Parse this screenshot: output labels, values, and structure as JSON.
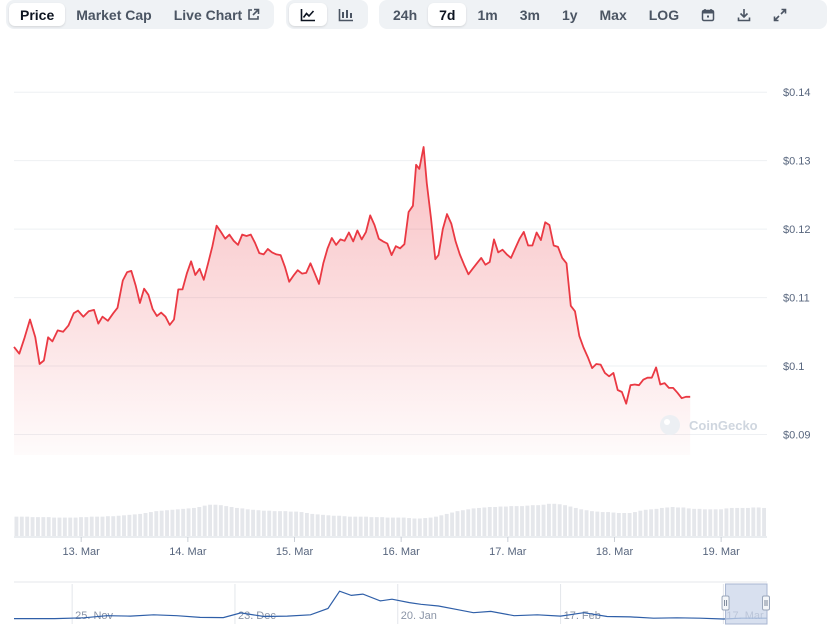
{
  "toolbar": {
    "metric_tabs": [
      "Price",
      "Market Cap",
      "Live Chart"
    ],
    "active_metric": "Price",
    "ranges": [
      "24h",
      "7d",
      "1m",
      "3m",
      "1y",
      "Max",
      "LOG"
    ],
    "active_range": "7d"
  },
  "icons": {
    "external_link": "external-link-icon",
    "line_chart": "line-chart-icon",
    "candlestick_chart": "candlestick-icon",
    "calendar": "calendar-icon",
    "download": "download-icon",
    "expand": "expand-icon"
  },
  "colors": {
    "price_line": "#ea3943",
    "area_fill": "#ea3943",
    "volume_bar": "#e5e7eb",
    "navigator_line": "#2f5fa8",
    "navigator_selection": "#cbd6ea"
  },
  "watermark": "CoinGecko",
  "chart_data": {
    "type": "line",
    "y_axis_position": "right",
    "ylim": [
      0.087,
      0.145
    ],
    "y_ticks": [
      0.09,
      0.1,
      0.11,
      0.12,
      0.13,
      0.14
    ],
    "y_tick_labels": [
      "$0.09",
      "$0.1",
      "$0.11",
      "$0.12",
      "$0.13",
      "$0.14"
    ],
    "grid": true,
    "x_tick_labels": [
      "13. Mar",
      "14. Mar",
      "15. Mar",
      "16. Mar",
      "17. Mar",
      "18. Mar",
      "19. Mar"
    ],
    "x_tick_days": [
      1,
      2,
      3,
      4,
      5,
      6,
      7
    ],
    "x_day_range": [
      0.37,
      7.43
    ],
    "price_series": [
      [
        0.37,
        0.1028
      ],
      [
        0.42,
        0.1018
      ],
      [
        0.47,
        0.1042
      ],
      [
        0.52,
        0.1068
      ],
      [
        0.57,
        0.1042
      ],
      [
        0.61,
        0.1003
      ],
      [
        0.65,
        0.1008
      ],
      [
        0.69,
        0.1042
      ],
      [
        0.73,
        0.1036
      ],
      [
        0.78,
        0.1052
      ],
      [
        0.83,
        0.105
      ],
      [
        0.88,
        0.1059
      ],
      [
        0.93,
        0.1077
      ],
      [
        0.97,
        0.1081
      ],
      [
        1.02,
        0.1072
      ],
      [
        1.07,
        0.108
      ],
      [
        1.12,
        0.1082
      ],
      [
        1.16,
        0.1062
      ],
      [
        1.2,
        0.1072
      ],
      [
        1.25,
        0.1066
      ],
      [
        1.3,
        0.1077
      ],
      [
        1.34,
        0.1085
      ],
      [
        1.39,
        0.1125
      ],
      [
        1.43,
        0.1137
      ],
      [
        1.47,
        0.1139
      ],
      [
        1.51,
        0.1118
      ],
      [
        1.55,
        0.1092
      ],
      [
        1.59,
        0.1113
      ],
      [
        1.63,
        0.1104
      ],
      [
        1.67,
        0.1083
      ],
      [
        1.71,
        0.1073
      ],
      [
        1.75,
        0.1078
      ],
      [
        1.79,
        0.1072
      ],
      [
        1.83,
        0.106
      ],
      [
        1.87,
        0.1068
      ],
      [
        1.91,
        0.1112
      ],
      [
        1.95,
        0.1112
      ],
      [
        1.99,
        0.1135
      ],
      [
        2.03,
        0.1153
      ],
      [
        2.07,
        0.1133
      ],
      [
        2.11,
        0.1142
      ],
      [
        2.15,
        0.1126
      ],
      [
        2.19,
        0.115
      ],
      [
        2.23,
        0.1175
      ],
      [
        2.27,
        0.1205
      ],
      [
        2.31,
        0.1196
      ],
      [
        2.35,
        0.1186
      ],
      [
        2.39,
        0.1192
      ],
      [
        2.43,
        0.1183
      ],
      [
        2.47,
        0.1177
      ],
      [
        2.51,
        0.1192
      ],
      [
        2.55,
        0.119
      ],
      [
        2.59,
        0.1192
      ],
      [
        2.63,
        0.118
      ],
      [
        2.67,
        0.1165
      ],
      [
        2.71,
        0.1163
      ],
      [
        2.75,
        0.1171
      ],
      [
        2.79,
        0.1166
      ],
      [
        2.83,
        0.1163
      ],
      [
        2.87,
        0.1162
      ],
      [
        2.91,
        0.1145
      ],
      [
        2.95,
        0.1123
      ],
      [
        2.99,
        0.1132
      ],
      [
        3.03,
        0.114
      ],
      [
        3.07,
        0.1135
      ],
      [
        3.11,
        0.1136
      ],
      [
        3.15,
        0.115
      ],
      [
        3.19,
        0.1135
      ],
      [
        3.23,
        0.112
      ],
      [
        3.27,
        0.115
      ],
      [
        3.31,
        0.1172
      ],
      [
        3.35,
        0.1187
      ],
      [
        3.39,
        0.1177
      ],
      [
        3.43,
        0.1185
      ],
      [
        3.47,
        0.1183
      ],
      [
        3.51,
        0.1195
      ],
      [
        3.55,
        0.1182
      ],
      [
        3.59,
        0.1198
      ],
      [
        3.63,
        0.1185
      ],
      [
        3.67,
        0.1196
      ],
      [
        3.71,
        0.122
      ],
      [
        3.75,
        0.1206
      ],
      [
        3.79,
        0.1186
      ],
      [
        3.83,
        0.1182
      ],
      [
        3.87,
        0.1179
      ],
      [
        3.91,
        0.1162
      ],
      [
        3.95,
        0.1175
      ],
      [
        3.99,
        0.1172
      ],
      [
        4.03,
        0.1178
      ],
      [
        4.07,
        0.1225
      ],
      [
        4.11,
        0.1234
      ],
      [
        4.14,
        0.1294
      ],
      [
        4.17,
        0.1288
      ],
      [
        4.21,
        0.132
      ],
      [
        4.24,
        0.1267
      ],
      [
        4.28,
        0.1216
      ],
      [
        4.32,
        0.1156
      ],
      [
        4.35,
        0.1162
      ],
      [
        4.39,
        0.12
      ],
      [
        4.43,
        0.1222
      ],
      [
        4.47,
        0.1208
      ],
      [
        4.51,
        0.1182
      ],
      [
        4.55,
        0.1163
      ],
      [
        4.59,
        0.1148
      ],
      [
        4.63,
        0.1134
      ],
      [
        4.67,
        0.1142
      ],
      [
        4.71,
        0.115
      ],
      [
        4.75,
        0.1158
      ],
      [
        4.79,
        0.1148
      ],
      [
        4.83,
        0.1152
      ],
      [
        4.87,
        0.1185
      ],
      [
        4.91,
        0.1166
      ],
      [
        4.95,
        0.117
      ],
      [
        4.99,
        0.1163
      ],
      [
        5.03,
        0.1158
      ],
      [
        5.07,
        0.1172
      ],
      [
        5.11,
        0.1186
      ],
      [
        5.15,
        0.1196
      ],
      [
        5.19,
        0.1176
      ],
      [
        5.23,
        0.1176
      ],
      [
        5.27,
        0.1195
      ],
      [
        5.31,
        0.1184
      ],
      [
        5.35,
        0.121
      ],
      [
        5.39,
        0.1206
      ],
      [
        5.43,
        0.1176
      ],
      [
        5.47,
        0.1174
      ],
      [
        5.51,
        0.1158
      ],
      [
        5.55,
        0.115
      ],
      [
        5.59,
        0.1088
      ],
      [
        5.63,
        0.108
      ],
      [
        5.67,
        0.1044
      ],
      [
        5.71,
        0.1027
      ],
      [
        5.75,
        0.1013
      ],
      [
        5.79,
        0.0997
      ],
      [
        5.83,
        0.1003
      ],
      [
        5.87,
        0.1002
      ],
      [
        5.91,
        0.099
      ],
      [
        5.95,
        0.0985
      ],
      [
        5.99,
        0.099
      ],
      [
        6.03,
        0.0965
      ],
      [
        6.07,
        0.0962
      ],
      [
        6.11,
        0.0945
      ],
      [
        6.15,
        0.0972
      ],
      [
        6.19,
        0.0973
      ],
      [
        6.23,
        0.0972
      ],
      [
        6.27,
        0.098
      ],
      [
        6.31,
        0.0983
      ],
      [
        6.35,
        0.0983
      ],
      [
        6.39,
        0.0998
      ],
      [
        6.43,
        0.0973
      ],
      [
        6.47,
        0.0975
      ],
      [
        6.51,
        0.0968
      ],
      [
        6.55,
        0.0968
      ],
      [
        6.59,
        0.0961
      ],
      [
        6.63,
        0.0953
      ],
      [
        6.67,
        0.0955
      ],
      [
        6.71,
        0.0955
      ]
    ],
    "volume": {
      "relative_values": [
        0.42,
        0.42,
        0.42,
        0.41,
        0.41,
        0.41,
        0.41,
        0.4,
        0.4,
        0.4,
        0.4,
        0.4,
        0.41,
        0.41,
        0.42,
        0.42,
        0.42,
        0.43,
        0.43,
        0.44,
        0.45,
        0.46,
        0.47,
        0.48,
        0.5,
        0.52,
        0.54,
        0.55,
        0.56,
        0.57,
        0.58,
        0.59,
        0.6,
        0.61,
        0.63,
        0.66,
        0.68,
        0.68,
        0.67,
        0.65,
        0.63,
        0.61,
        0.6,
        0.58,
        0.57,
        0.56,
        0.55,
        0.55,
        0.54,
        0.54,
        0.54,
        0.53,
        0.53,
        0.52,
        0.5,
        0.48,
        0.47,
        0.46,
        0.45,
        0.44,
        0.44,
        0.43,
        0.42,
        0.42,
        0.42,
        0.42,
        0.41,
        0.41,
        0.41,
        0.4,
        0.4,
        0.4,
        0.4,
        0.39,
        0.38,
        0.38,
        0.39,
        0.4,
        0.42,
        0.45,
        0.48,
        0.51,
        0.54,
        0.56,
        0.58,
        0.6,
        0.61,
        0.62,
        0.63,
        0.63,
        0.64,
        0.64,
        0.65,
        0.65,
        0.65,
        0.66,
        0.67,
        0.67,
        0.68,
        0.7,
        0.7,
        0.69,
        0.67,
        0.64,
        0.61,
        0.58,
        0.56,
        0.54,
        0.53,
        0.52,
        0.52,
        0.51,
        0.5,
        0.5,
        0.5,
        0.52,
        0.55,
        0.57,
        0.58,
        0.59,
        0.61,
        0.62,
        0.63,
        0.62,
        0.62,
        0.6,
        0.59,
        0.59,
        0.58,
        0.58,
        0.58,
        0.58,
        0.6,
        0.61,
        0.61,
        0.61,
        0.61,
        0.62,
        0.62,
        0.61
      ]
    },
    "navigator": {
      "x_tick_labels": [
        "25. Nov",
        "23. Dec",
        "20. Jan",
        "17. Feb",
        "17. Mar"
      ],
      "x_tick_days": [
        -112,
        -84,
        -56,
        -28,
        0
      ],
      "x_day_range": [
        -122,
        7.5
      ],
      "ylim": [
        0.04,
        0.22
      ],
      "selection_days": [
        0.37,
        7.5
      ],
      "series": [
        [
          -122,
          0.056
        ],
        [
          -115,
          0.056
        ],
        [
          -110,
          0.06
        ],
        [
          -106,
          0.07
        ],
        [
          -102,
          0.068
        ],
        [
          -98,
          0.074
        ],
        [
          -94,
          0.07
        ],
        [
          -90,
          0.062
        ],
        [
          -86,
          0.061
        ],
        [
          -83,
          0.083
        ],
        [
          -79,
          0.066
        ],
        [
          -75,
          0.068
        ],
        [
          -71,
          0.074
        ],
        [
          -68,
          0.104
        ],
        [
          -66,
          0.186
        ],
        [
          -64,
          0.166
        ],
        [
          -62,
          0.172
        ],
        [
          -59,
          0.14
        ],
        [
          -57,
          0.148
        ],
        [
          -54,
          0.132
        ],
        [
          -52,
          0.124
        ],
        [
          -49,
          0.116
        ],
        [
          -46,
          0.1
        ],
        [
          -43,
          0.084
        ],
        [
          -40,
          0.09
        ],
        [
          -36,
          0.07
        ],
        [
          -32,
          0.074
        ],
        [
          -28,
          0.068
        ],
        [
          -24,
          0.084
        ],
        [
          -20,
          0.066
        ],
        [
          -16,
          0.064
        ],
        [
          -12,
          0.058
        ],
        [
          -8,
          0.06
        ],
        [
          -4,
          0.058
        ],
        [
          0,
          0.054
        ],
        [
          3,
          0.058
        ],
        [
          7.5,
          0.058
        ]
      ]
    }
  }
}
